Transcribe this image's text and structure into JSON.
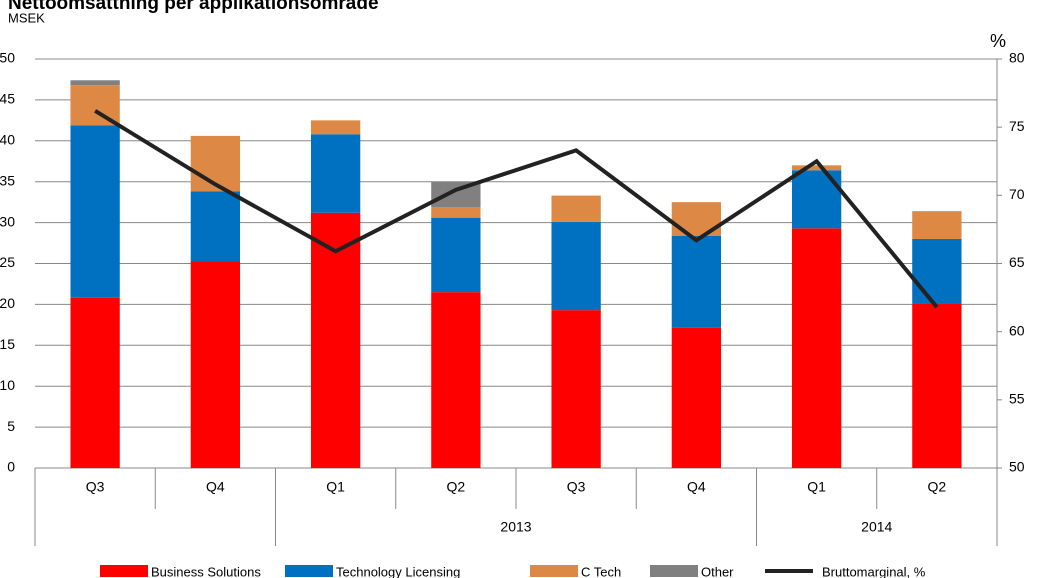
{
  "chart_data": {
    "type": "bar",
    "stacked": true,
    "title": "Nettoomsättning per applikationsområde",
    "ylabel": "MSEK",
    "y2label": "%",
    "categories": [
      "Q3",
      "Q4",
      "Q1",
      "Q2",
      "Q3",
      "Q4",
      "Q1",
      "Q2"
    ],
    "category_groups": [
      null,
      null,
      "2013",
      "2013",
      "2013",
      "2013",
      "2014",
      "2014"
    ],
    "series": [
      {
        "name": "Business Solutions",
        "color": "#ff0000",
        "values": [
          20.8,
          25.3,
          31.2,
          21.5,
          19.3,
          17.2,
          29.3,
          20.1
        ]
      },
      {
        "name": "Technology Licensing",
        "color": "#0070c0",
        "values": [
          21.1,
          8.5,
          9.6,
          9.1,
          10.8,
          11.2,
          7.1,
          7.9
        ]
      },
      {
        "name": "C Tech",
        "color": "#dd8844",
        "values": [
          4.9,
          6.8,
          1.7,
          1.3,
          3.2,
          4.1,
          0.6,
          3.4
        ]
      },
      {
        "name": "Other",
        "color": "#808080",
        "values": [
          0.6,
          0,
          0,
          3.1,
          0,
          0,
          0,
          0
        ]
      },
      {
        "name": "Bruttomarginal, %",
        "type": "line",
        "axis": "y2",
        "color": "#222222",
        "values": [
          76.2,
          70.8,
          65.9,
          70.4,
          73.3,
          66.7,
          72.5,
          61.8
        ]
      }
    ],
    "ylim": [
      0,
      50
    ],
    "yticks": [
      0,
      5,
      10,
      15,
      20,
      25,
      30,
      35,
      40,
      45,
      50
    ],
    "y2lim": [
      50,
      80
    ],
    "y2ticks": [
      50,
      55,
      60,
      65,
      70,
      75,
      80
    ],
    "grid": true,
    "legend": "bottom"
  }
}
